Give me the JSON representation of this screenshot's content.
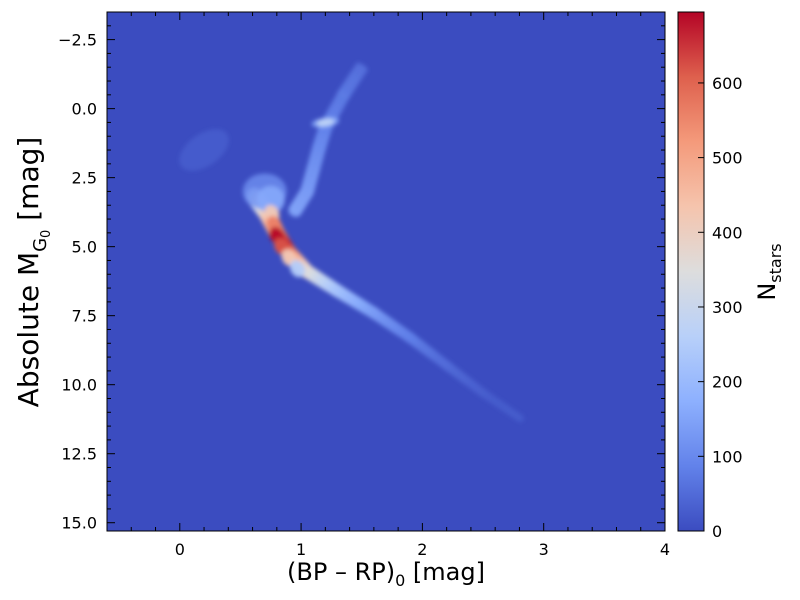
{
  "chart_data": {
    "type": "heatmap",
    "title": "",
    "xlabel": "(BP – RP)",
    "xlabel_sub": "0",
    "xlabel_suffix": " [mag]",
    "ylabel": "Absolute M",
    "ylabel_sub": "G",
    "ylabel_subsub": "0",
    "ylabel_suffix": "  [mag]",
    "xlim": [
      -0.6,
      4.0
    ],
    "ylim": [
      15.3,
      -3.5
    ],
    "y_inverted": true,
    "xticks": [
      0,
      1,
      2,
      3,
      4
    ],
    "xtick_labels": [
      "0",
      "1",
      "2",
      "3",
      "4"
    ],
    "yticks": [
      -2.5,
      0.0,
      2.5,
      5.0,
      7.5,
      10.0,
      12.5,
      15.0
    ],
    "ytick_labels": [
      "−2.5",
      "0.0",
      "2.5",
      "5.0",
      "7.5",
      "10.0",
      "12.5",
      "15.0"
    ],
    "colormap": "coolwarm",
    "background_color": "#3b4cc0",
    "colorbar": {
      "label": "N",
      "label_sub": "stars",
      "range": [
        0,
        695
      ],
      "ticks": [
        0,
        100,
        200,
        300,
        400,
        500,
        600
      ],
      "tick_labels": [
        "0",
        "100",
        "200",
        "300",
        "400",
        "500",
        "600"
      ]
    },
    "density_features": [
      {
        "name": "main sequence",
        "path": [
          [
            0.62,
            3.2
          ],
          [
            0.72,
            3.8
          ],
          [
            0.8,
            4.5
          ],
          [
            0.9,
            5.2
          ],
          [
            1.05,
            5.9
          ],
          [
            1.3,
            6.6
          ],
          [
            1.6,
            7.4
          ],
          [
            1.9,
            8.3
          ],
          [
            2.2,
            9.3
          ],
          [
            2.5,
            10.3
          ],
          [
            2.8,
            11.2
          ]
        ],
        "peak_value": 690
      },
      {
        "name": "red giant branch",
        "path": [
          [
            0.95,
            3.7
          ],
          [
            1.05,
            3.0
          ],
          [
            1.1,
            2.2
          ],
          [
            1.15,
            1.4
          ],
          [
            1.2,
            0.7
          ],
          [
            1.35,
            -0.5
          ],
          [
            1.5,
            -1.5
          ]
        ],
        "peak_value": 150
      },
      {
        "name": "red clump",
        "center": [
          1.2,
          0.5
        ],
        "peak_value": 270
      },
      {
        "name": "subgiant branch",
        "center": [
          0.7,
          3.0
        ],
        "peak_value": 160
      },
      {
        "name": "blue stragglers",
        "center": [
          0.2,
          1.5
        ],
        "peak_value": 40
      }
    ]
  }
}
